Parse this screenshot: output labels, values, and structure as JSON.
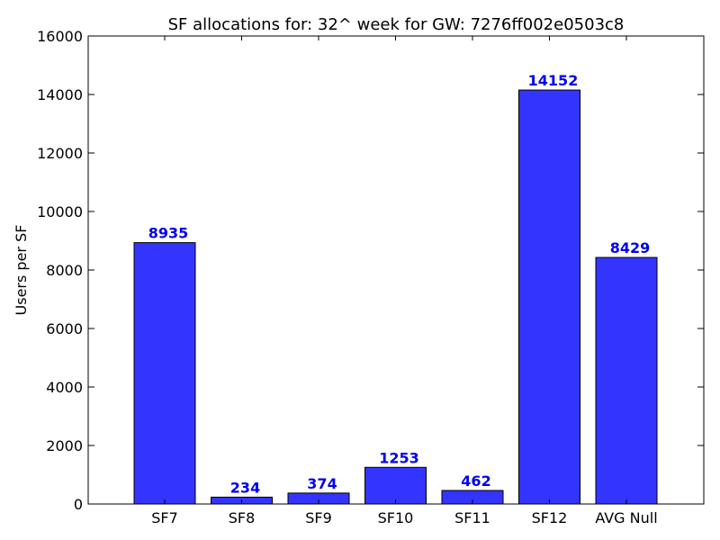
{
  "chart_data": {
    "type": "bar",
    "title": "SF allocations for: 32^ week for GW: 7276ff002e0503c8",
    "xlabel": "",
    "ylabel": "Users per SF",
    "categories": [
      "SF7",
      "SF8",
      "SF9",
      "SF10",
      "SF11",
      "SF12",
      "AVG Null"
    ],
    "values": [
      8935,
      234,
      374,
      1253,
      462,
      14152,
      8429
    ],
    "ylim": [
      0,
      16000
    ],
    "yticks": [
      0,
      2000,
      4000,
      6000,
      8000,
      10000,
      12000,
      14000,
      16000
    ],
    "grid": false,
    "legend": "none",
    "colors": {
      "bar_fill": "#3434ff",
      "bar_edge": "#000000",
      "data_label": "#0000ee"
    }
  }
}
